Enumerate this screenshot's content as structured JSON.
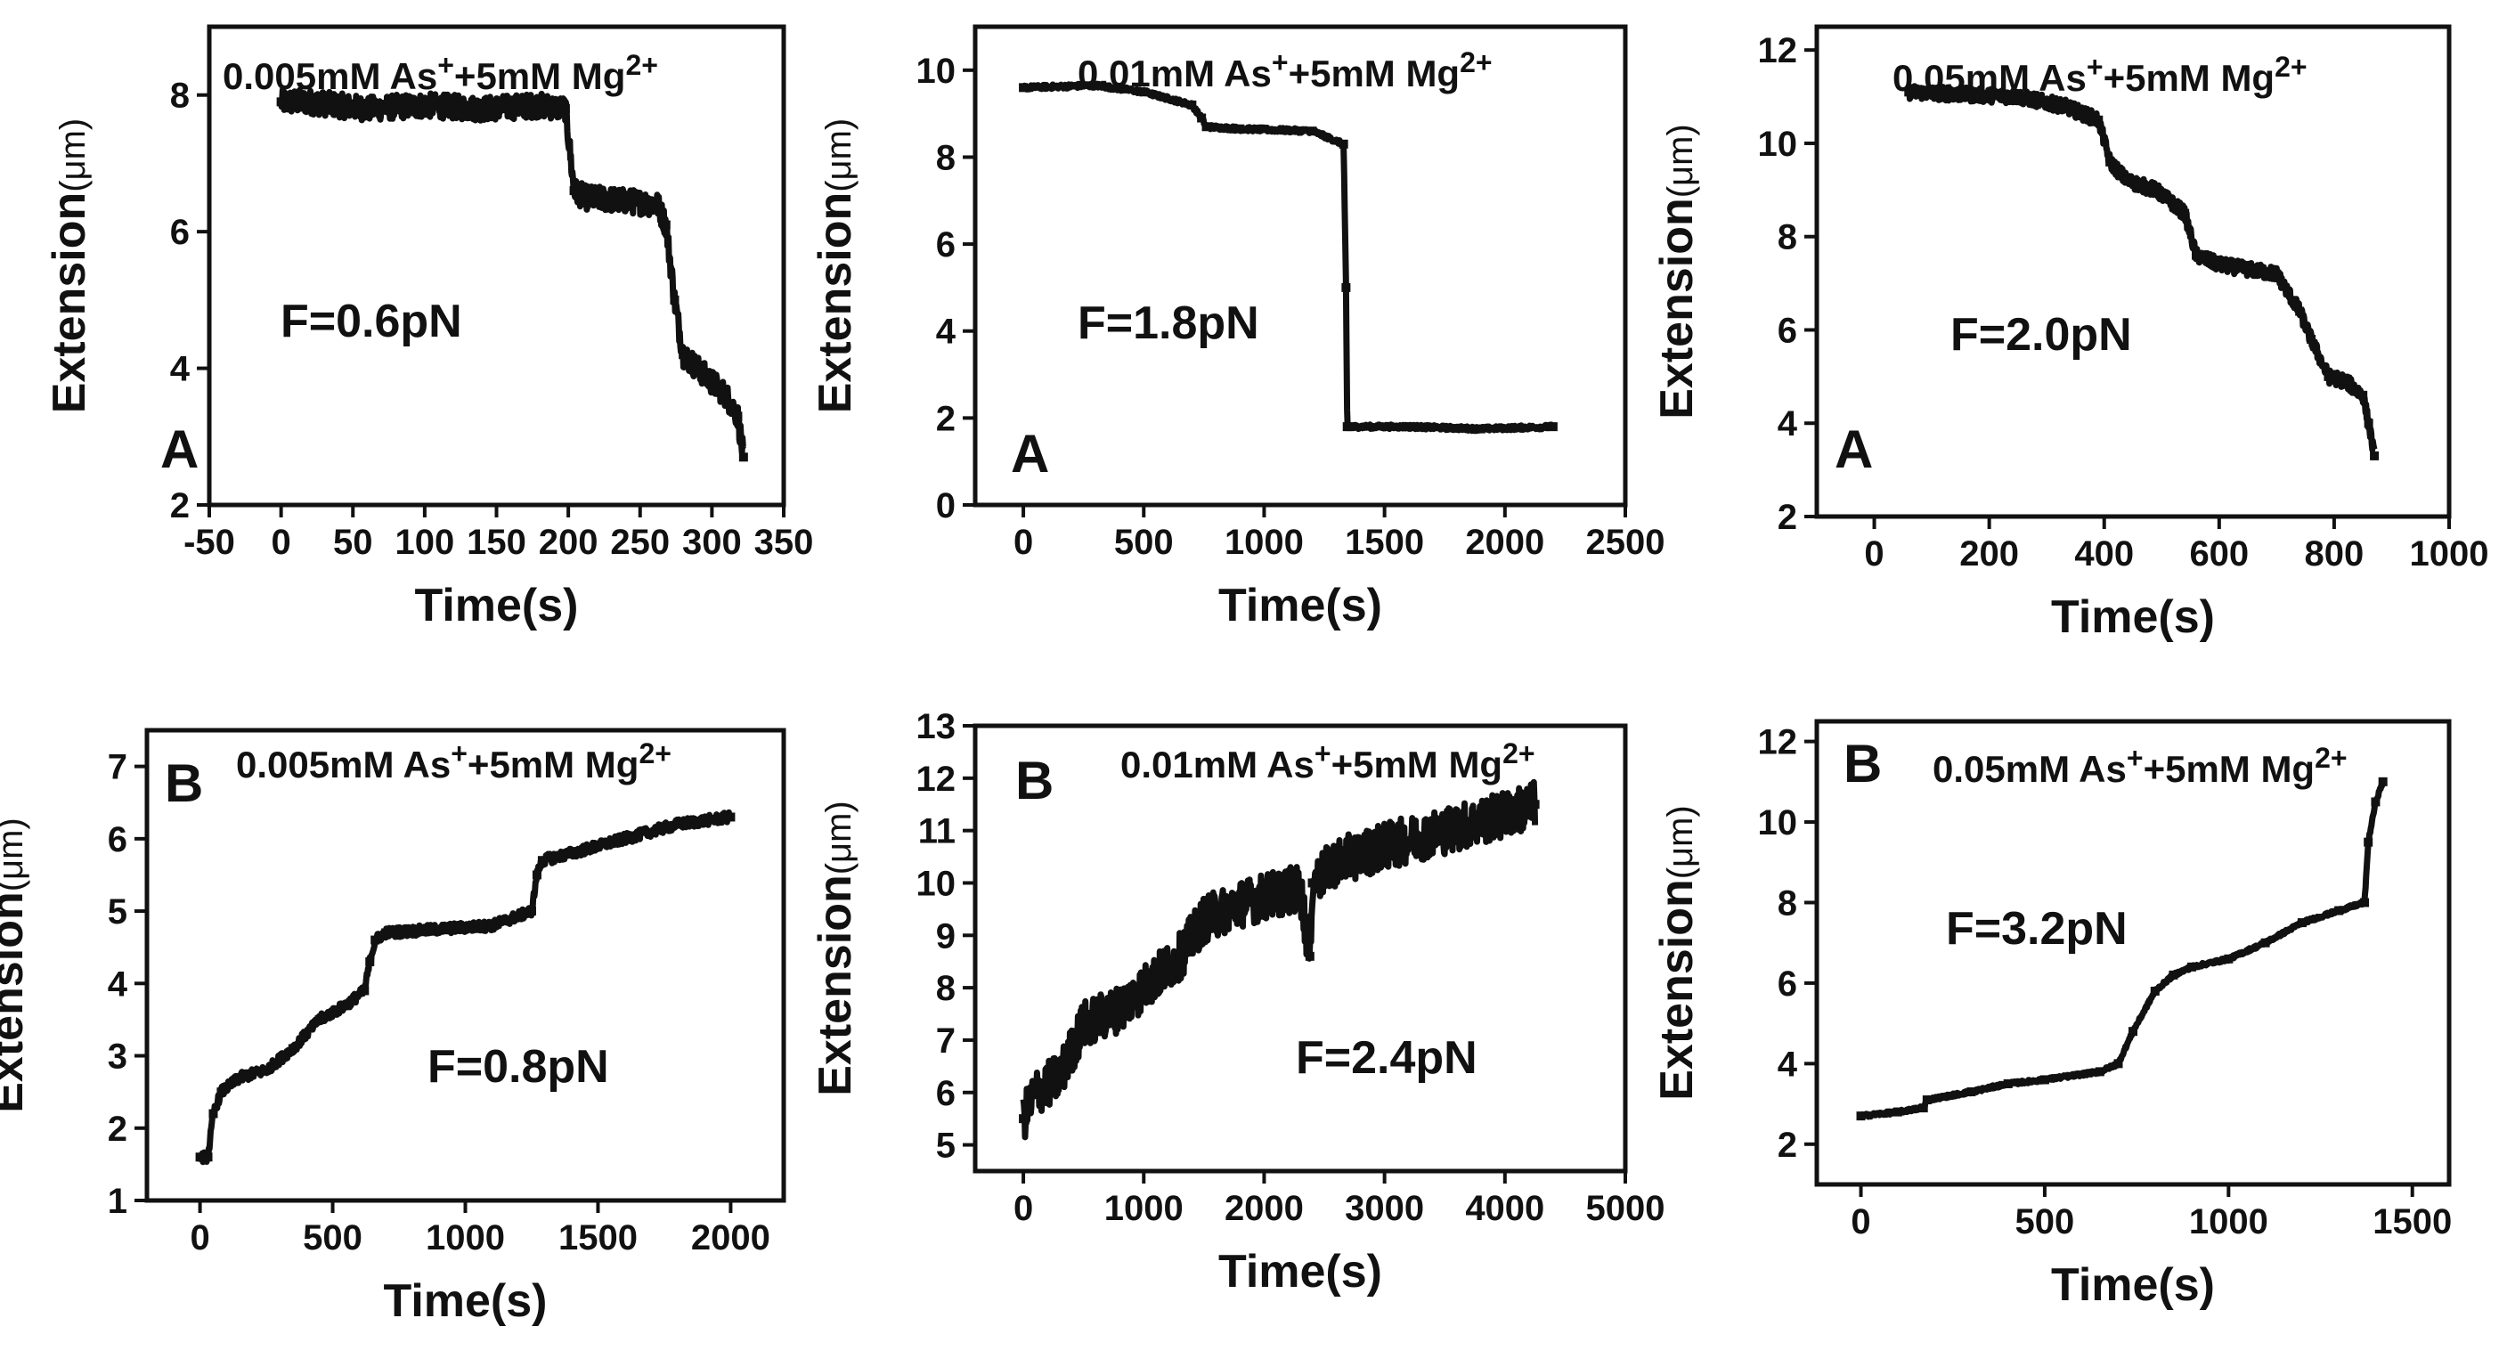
{
  "figure": {
    "background": "#ffffff",
    "ink": "#111111"
  },
  "chart_data": [
    {
      "id": "A1",
      "type": "line",
      "title": "0.005mM As",
      "title_sup1": "+",
      "title_mid": "+5mM Mg",
      "title_sup2": "2+",
      "panel_label": "A",
      "force_label": "F=0.6pN",
      "xlabel": "Time(s)",
      "ylabel": "Extension",
      "ylabel_unit": "(μm)",
      "xlim": [
        -50,
        350
      ],
      "ylim": [
        2,
        9
      ],
      "xticks": [
        -50,
        0,
        50,
        100,
        150,
        200,
        250,
        300,
        350
      ],
      "yticks": [
        2,
        4,
        6,
        8
      ],
      "series": [
        {
          "name": "trace",
          "noise": 0.18,
          "x": [
            0,
            20,
            60,
            100,
            140,
            180,
            198,
            204,
            212,
            240,
            262,
            268,
            274,
            280,
            290,
            300,
            310,
            318,
            322
          ],
          "y": [
            7.9,
            7.9,
            7.8,
            7.85,
            7.8,
            7.85,
            7.8,
            6.6,
            6.5,
            6.45,
            6.4,
            6.1,
            5.0,
            4.2,
            4.0,
            3.8,
            3.6,
            3.3,
            2.7
          ]
        }
      ]
    },
    {
      "id": "A2",
      "type": "line",
      "title": "0.01mM As",
      "title_sup1": "+",
      "title_mid": "+5mM Mg",
      "title_sup2": "2+",
      "panel_label": "A",
      "force_label": "F=1.8pN",
      "xlabel": "Time(s)",
      "ylabel": "Extension",
      "ylabel_unit": "(μm)",
      "xlim": [
        -200,
        2500
      ],
      "ylim": [
        0,
        11
      ],
      "xticks": [
        0,
        500,
        1000,
        1500,
        2000,
        2500
      ],
      "yticks": [
        0,
        2,
        4,
        6,
        8,
        10
      ],
      "series": [
        {
          "name": "trace",
          "noise": 0.05,
          "x": [
            0,
            300,
            500,
            700,
            740,
            760,
            900,
            1200,
            1330,
            1340,
            1345,
            1360,
            1600,
            1900,
            2200
          ],
          "y": [
            9.6,
            9.65,
            9.5,
            9.2,
            8.9,
            8.7,
            8.65,
            8.6,
            8.3,
            5.0,
            1.8,
            1.8,
            1.8,
            1.75,
            1.8
          ]
        }
      ]
    },
    {
      "id": "A3",
      "type": "line",
      "title": "0.05mM As",
      "title_sup1": "+",
      "title_mid": "+5mM Mg",
      "title_sup2": "2+",
      "panel_label": "A",
      "force_label": "F=2.0pN",
      "xlabel": "Time(s)",
      "ylabel": "Extension",
      "ylabel_unit": "(μm)",
      "xlim": [
        -100,
        1000
      ],
      "ylim": [
        2,
        12.5
      ],
      "xticks": [
        0,
        200,
        400,
        600,
        800,
        1000
      ],
      "yticks": [
        2,
        4,
        6,
        8,
        10,
        12
      ],
      "series": [
        {
          "name": "trace",
          "noise": 0.15,
          "x": [
            60,
            150,
            250,
            330,
            390,
            410,
            440,
            490,
            540,
            560,
            600,
            650,
            700,
            720,
            740,
            760,
            790,
            820,
            850,
            860,
            870
          ],
          "y": [
            11.1,
            11.05,
            11.0,
            10.8,
            10.5,
            9.6,
            9.2,
            9.0,
            8.5,
            7.6,
            7.4,
            7.3,
            7.2,
            6.8,
            6.4,
            5.8,
            5.0,
            4.9,
            4.6,
            4.0,
            3.3
          ]
        }
      ]
    },
    {
      "id": "B1",
      "type": "line",
      "title": "0.005mM As",
      "title_sup1": "+",
      "title_mid": "+5mM Mg",
      "title_sup2": "2+",
      "panel_label": "B",
      "force_label": "F=0.8pN",
      "xlabel": "Time(s)",
      "ylabel": "Extension",
      "ylabel_unit": "(μm)",
      "xlim": [
        -200,
        2200
      ],
      "ylim": [
        1,
        7.5
      ],
      "xticks": [
        0,
        500,
        1000,
        1500,
        2000
      ],
      "yticks": [
        1,
        2,
        3,
        4,
        5,
        6,
        7
      ],
      "series": [
        {
          "name": "trace",
          "noise": 0.07,
          "x": [
            0,
            30,
            50,
            80,
            150,
            250,
            350,
            450,
            550,
            620,
            640,
            660,
            700,
            900,
            1100,
            1250,
            1270,
            1290,
            1400,
            1600,
            1800,
            2000
          ],
          "y": [
            1.6,
            1.6,
            2.2,
            2.5,
            2.7,
            2.8,
            3.1,
            3.5,
            3.7,
            3.9,
            4.3,
            4.6,
            4.7,
            4.75,
            4.8,
            5.0,
            5.5,
            5.7,
            5.8,
            6.0,
            6.2,
            6.3
          ]
        }
      ]
    },
    {
      "id": "B2",
      "type": "line",
      "title": "0.01mM As",
      "title_sup1": "+",
      "title_mid": "+5mM Mg",
      "title_sup2": "2+",
      "panel_label": "B",
      "force_label": "F=2.4pN",
      "xlabel": "Time(s)",
      "ylabel": "Extension",
      "ylabel_unit": "(μm)",
      "xlim": [
        -400,
        5000
      ],
      "ylim": [
        4.5,
        13
      ],
      "xticks": [
        0,
        1000,
        2000,
        3000,
        4000,
        5000
      ],
      "yticks": [
        5,
        6,
        7,
        8,
        9,
        10,
        11,
        12,
        13
      ],
      "series": [
        {
          "name": "trace",
          "noise": 0.45,
          "x": [
            0,
            100,
            300,
            500,
            800,
            1100,
            1300,
            1500,
            1800,
            2100,
            2300,
            2380,
            2400,
            2450,
            2600,
            3000,
            3500,
            4000,
            4250
          ],
          "y": [
            5.5,
            6.0,
            6.3,
            7.3,
            7.6,
            8.2,
            8.6,
            9.3,
            9.6,
            9.8,
            9.9,
            8.6,
            10.0,
            10.1,
            10.4,
            10.7,
            11.0,
            11.3,
            11.5
          ]
        }
      ]
    },
    {
      "id": "B3",
      "type": "line",
      "title": "0.05mM As",
      "title_sup1": "+",
      "title_mid": "+5mM Mg",
      "title_sup2": "2+",
      "panel_label": "B",
      "force_label": "F=3.2pN",
      "xlabel": "Time(s)",
      "ylabel": "Extension",
      "ylabel_unit": "(μm)",
      "xlim": [
        -120,
        1600
      ],
      "ylim": [
        1,
        12.5
      ],
      "xticks": [
        0,
        500,
        1000,
        1500
      ],
      "yticks": [
        2,
        4,
        6,
        8,
        10,
        12
      ],
      "series": [
        {
          "name": "trace",
          "noise": 0.04,
          "x": [
            0,
            100,
            170,
            180,
            300,
            400,
            500,
            650,
            700,
            740,
            800,
            850,
            900,
            1000,
            1100,
            1200,
            1300,
            1370,
            1380,
            1400,
            1420
          ],
          "y": [
            2.7,
            2.8,
            2.9,
            3.1,
            3.3,
            3.5,
            3.6,
            3.8,
            4.0,
            4.8,
            5.8,
            6.2,
            6.4,
            6.6,
            7.0,
            7.5,
            7.8,
            8.0,
            9.5,
            10.5,
            11.0
          ]
        }
      ]
    }
  ]
}
